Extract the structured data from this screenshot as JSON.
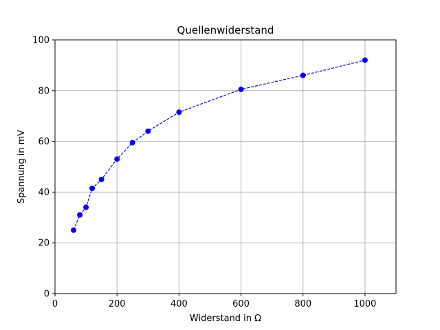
{
  "chart_data": {
    "type": "line",
    "title": "Quellenwiderstand",
    "xlabel": "Widerstand in Ω",
    "ylabel": "Spannung in mV",
    "xlim": [
      0,
      1100
    ],
    "ylim": [
      0,
      100
    ],
    "xticks": [
      0,
      200,
      400,
      600,
      800,
      1000
    ],
    "yticks": [
      0,
      20,
      40,
      60,
      80,
      100
    ],
    "grid": true,
    "line_style": "dashed",
    "marker": "circle",
    "color": "#0000ff",
    "series": [
      {
        "x": [
          60,
          80,
          100,
          120,
          150,
          200,
          250,
          300,
          400,
          600,
          800,
          1000
        ],
        "y": [
          25,
          31,
          34,
          41.5,
          45,
          53,
          59.5,
          64,
          71.5,
          80.5,
          86,
          92
        ]
      }
    ]
  }
}
